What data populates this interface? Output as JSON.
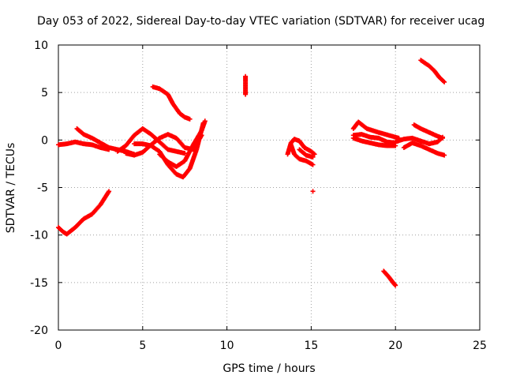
{
  "chart_data": {
    "type": "scatter",
    "title": "Day 053 of 2022, Sidereal Day-to-day VTEC variation (SDTVAR) for receiver ucag",
    "xlabel": "GPS time / hours",
    "ylabel": "SDTVAR / TECUs",
    "xlim": [
      0,
      25
    ],
    "ylim": [
      -20,
      10
    ],
    "xticks": [
      0,
      5,
      10,
      15,
      20,
      25
    ],
    "yticks": [
      -20,
      -15,
      -10,
      -5,
      0,
      5,
      10
    ],
    "grid": true,
    "marker": "+",
    "color": "#ff0000",
    "series": [
      {
        "name": "track-a",
        "points": [
          [
            0,
            -0.5
          ],
          [
            0.5,
            -0.4
          ],
          [
            1,
            -0.2
          ],
          [
            1.5,
            -0.4
          ],
          [
            2,
            -0.5
          ],
          [
            2.5,
            -0.8
          ],
          [
            3,
            -1.0
          ]
        ]
      },
      {
        "name": "track-b",
        "points": [
          [
            1.1,
            1.2
          ],
          [
            1.5,
            0.6
          ],
          [
            2,
            0.2
          ],
          [
            2.5,
            -0.3
          ],
          [
            3,
            -0.8
          ],
          [
            3.5,
            -1.0
          ],
          [
            4,
            -1.2
          ],
          [
            4.5,
            -1.5
          ]
        ]
      },
      {
        "name": "track-c",
        "points": [
          [
            0,
            -9.2
          ],
          [
            0.3,
            -9.7
          ],
          [
            0.5,
            -9.9
          ],
          [
            1,
            -9.2
          ],
          [
            1.5,
            -8.3
          ],
          [
            2,
            -7.8
          ],
          [
            2.5,
            -6.8
          ],
          [
            3,
            -5.4
          ]
        ]
      },
      {
        "name": "track-d",
        "points": [
          [
            3.5,
            -1.2
          ],
          [
            4,
            -0.6
          ],
          [
            4.5,
            0.5
          ],
          [
            5,
            1.2
          ],
          [
            5.5,
            0.6
          ],
          [
            6,
            -0.2
          ],
          [
            6.5,
            -1.0
          ],
          [
            7,
            -1.2
          ],
          [
            7.5,
            -1.4
          ]
        ]
      },
      {
        "name": "track-e",
        "points": [
          [
            4,
            -1.4
          ],
          [
            4.5,
            -1.6
          ],
          [
            5,
            -1.3
          ],
          [
            5.5,
            -0.5
          ],
          [
            6,
            0.2
          ],
          [
            6.5,
            0.6
          ],
          [
            7,
            0.2
          ],
          [
            7.5,
            -0.8
          ],
          [
            8,
            -1.0
          ],
          [
            8.5,
            0.5
          ]
        ]
      },
      {
        "name": "track-f",
        "points": [
          [
            4.5,
            -0.4
          ],
          [
            5,
            -0.4
          ],
          [
            5.5,
            -0.6
          ],
          [
            6,
            -1.2
          ],
          [
            6.5,
            -2.6
          ],
          [
            7,
            -3.6
          ],
          [
            7.4,
            -3.9
          ],
          [
            7.8,
            -3.0
          ],
          [
            8.2,
            -1.0
          ],
          [
            8.6,
            1.8
          ]
        ]
      },
      {
        "name": "track-g",
        "points": [
          [
            5.6,
            5.6
          ],
          [
            6,
            5.4
          ],
          [
            6.5,
            4.8
          ],
          [
            6.8,
            3.8
          ],
          [
            7.2,
            2.8
          ],
          [
            7.5,
            2.4
          ],
          [
            7.8,
            2.2
          ]
        ]
      },
      {
        "name": "track-h",
        "points": [
          [
            6,
            -1.5
          ],
          [
            6.5,
            -2.3
          ],
          [
            7,
            -2.8
          ],
          [
            7.5,
            -2.2
          ],
          [
            8,
            -0.5
          ],
          [
            8.5,
            1.0
          ],
          [
            8.7,
            2.0
          ]
        ]
      },
      {
        "name": "isolated-11h",
        "points": [
          [
            11.1,
            6.7
          ],
          [
            11.1,
            5.1
          ],
          [
            11.1,
            4.8
          ]
        ]
      },
      {
        "name": "track-i",
        "points": [
          [
            13.6,
            -1.5
          ],
          [
            13.8,
            -0.3
          ],
          [
            14,
            0.1
          ],
          [
            14.3,
            -0.1
          ],
          [
            14.6,
            -0.8
          ],
          [
            15,
            -1.2
          ],
          [
            15.2,
            -1.5
          ]
        ]
      },
      {
        "name": "track-j",
        "points": [
          [
            13.8,
            -0.5
          ],
          [
            14,
            -1.5
          ],
          [
            14.3,
            -2.0
          ],
          [
            14.7,
            -2.2
          ],
          [
            15.1,
            -2.6
          ]
        ]
      },
      {
        "name": "track-k",
        "points": [
          [
            14.3,
            -1.0
          ],
          [
            14.7,
            -1.6
          ],
          [
            15.1,
            -1.8
          ]
        ]
      },
      {
        "name": "isolated-15h",
        "points": [
          [
            15.1,
            -5.4
          ]
        ]
      },
      {
        "name": "track-l",
        "points": [
          [
            17.5,
            1.2
          ],
          [
            17.8,
            1.9
          ],
          [
            18.3,
            1.2
          ],
          [
            19,
            0.8
          ],
          [
            19.8,
            0.4
          ],
          [
            20.2,
            0.2
          ]
        ]
      },
      {
        "name": "track-m",
        "points": [
          [
            17.5,
            0.5
          ],
          [
            18,
            0.6
          ],
          [
            18.5,
            0.3
          ],
          [
            19,
            0.2
          ],
          [
            19.5,
            -0.2
          ],
          [
            20,
            -0.3
          ]
        ]
      },
      {
        "name": "track-n",
        "points": [
          [
            17.5,
            0.2
          ],
          [
            18,
            -0.1
          ],
          [
            18.5,
            -0.3
          ],
          [
            19,
            -0.5
          ],
          [
            19.5,
            -0.6
          ],
          [
            20,
            -0.6
          ]
        ]
      },
      {
        "name": "track-o",
        "points": [
          [
            20,
            -0.2
          ],
          [
            20.5,
            0.1
          ],
          [
            21,
            0.2
          ],
          [
            21.5,
            -0.1
          ],
          [
            22,
            -0.4
          ],
          [
            22.5,
            -0.2
          ],
          [
            22.8,
            0.3
          ]
        ]
      },
      {
        "name": "track-p",
        "points": [
          [
            20.5,
            -0.8
          ],
          [
            21,
            -0.3
          ],
          [
            21.5,
            -0.6
          ],
          [
            22,
            -1.0
          ],
          [
            22.5,
            -1.4
          ],
          [
            22.9,
            -1.6
          ]
        ]
      },
      {
        "name": "track-q",
        "points": [
          [
            21.1,
            1.6
          ],
          [
            21.5,
            1.2
          ],
          [
            22,
            0.8
          ],
          [
            22.5,
            0.4
          ],
          [
            22.8,
            0.2
          ]
        ]
      },
      {
        "name": "track-r",
        "points": [
          [
            21.5,
            8.4
          ],
          [
            22,
            7.8
          ],
          [
            22.3,
            7.3
          ],
          [
            22.6,
            6.6
          ],
          [
            22.9,
            6.1
          ]
        ]
      },
      {
        "name": "track-s",
        "points": [
          [
            19.3,
            -13.8
          ],
          [
            19.6,
            -14.4
          ],
          [
            19.9,
            -15.1
          ],
          [
            20,
            -15.3
          ]
        ]
      }
    ]
  }
}
